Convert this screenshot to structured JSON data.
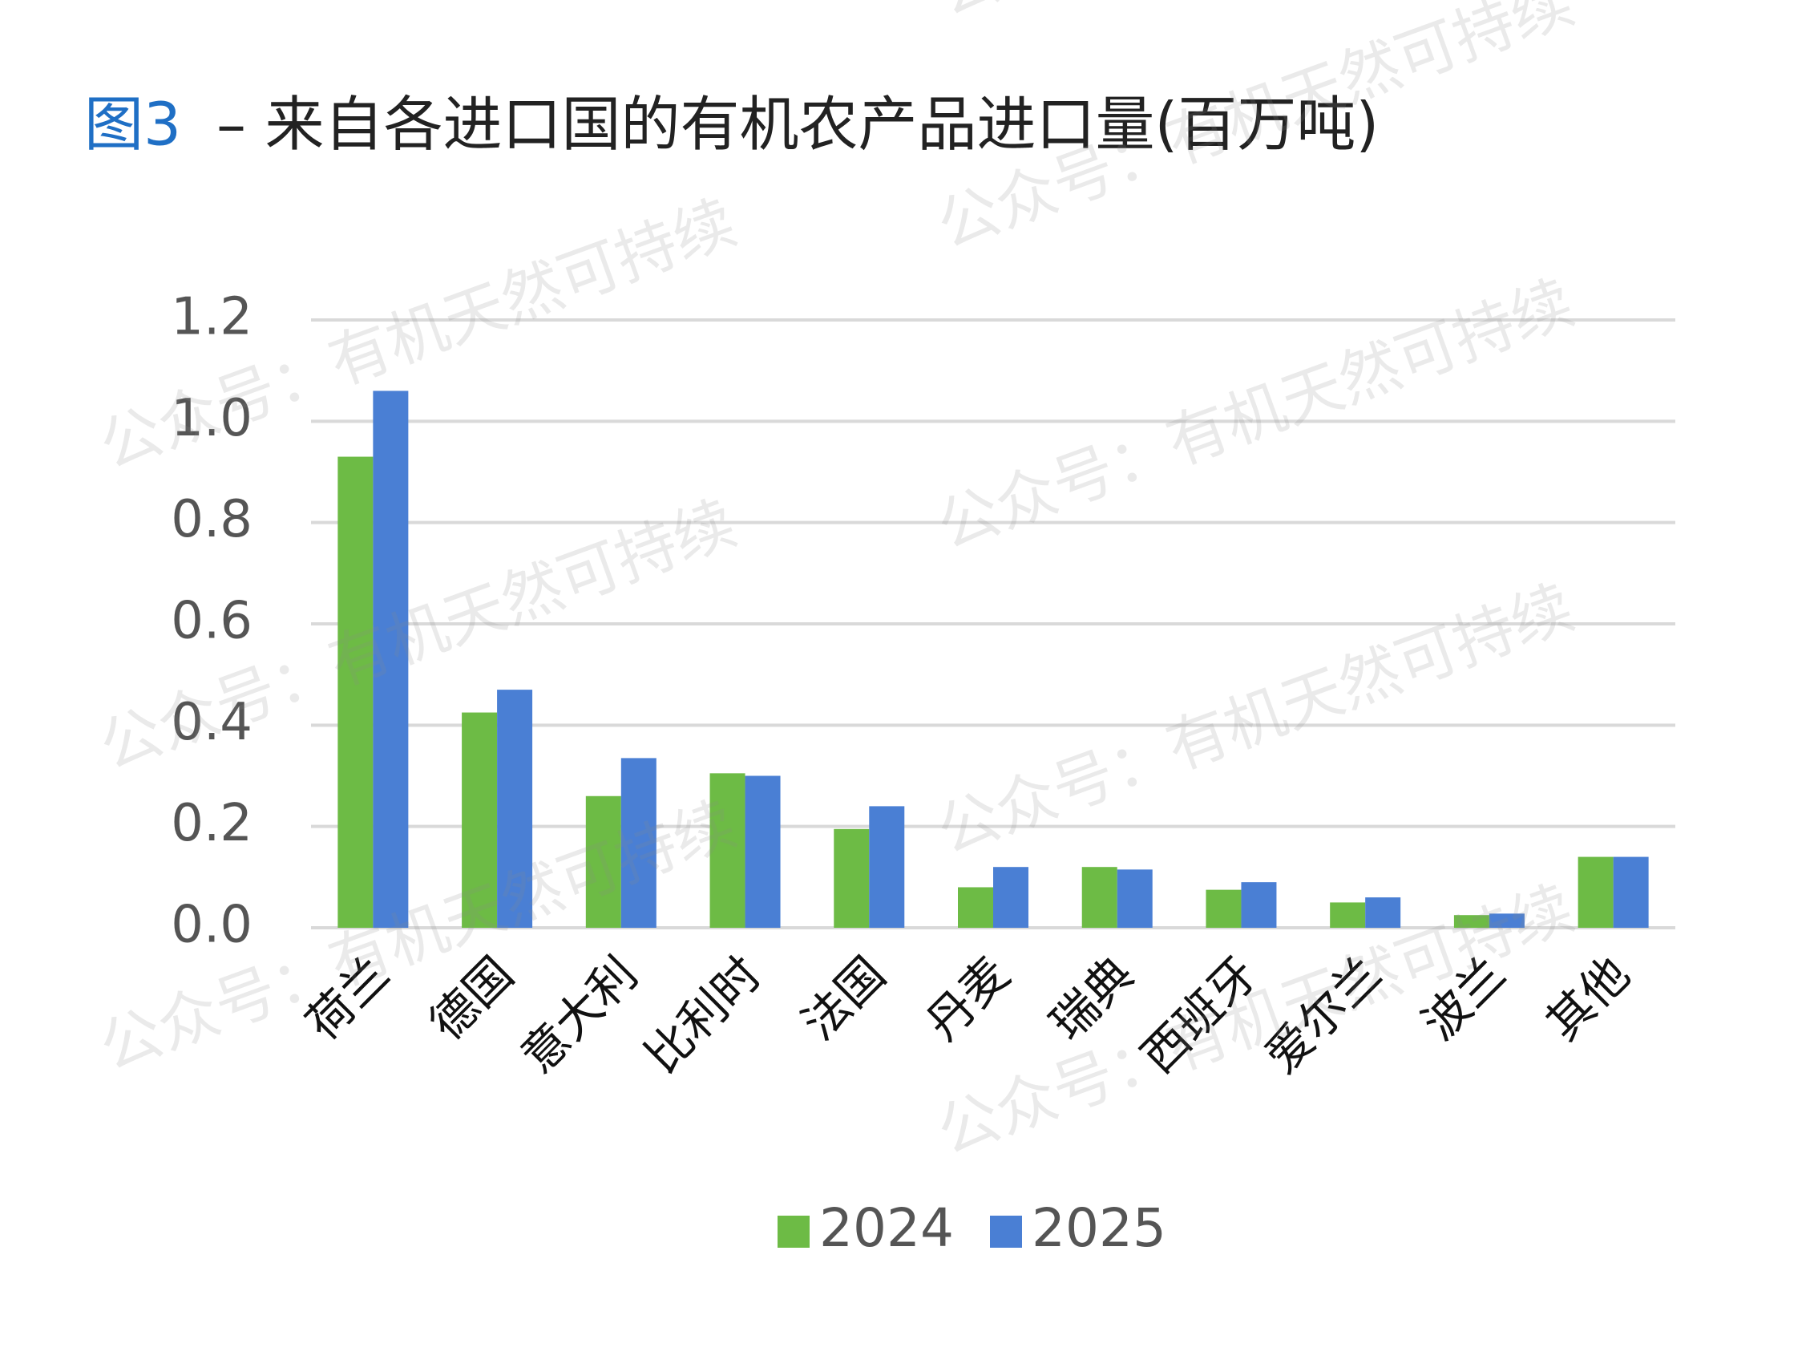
{
  "chart_data": {
    "type": "bar",
    "title_label": "图3",
    "title": "– 来自各进口国的有机农产品进口量(百万吨)",
    "watermark": "公众号：有机天然可持续",
    "categories": [
      "荷兰",
      "德国",
      "意大利",
      "比利时",
      "法国",
      "丹麦",
      "瑞典",
      "西班牙",
      "爱尔兰",
      "波兰",
      "其他"
    ],
    "series": [
      {
        "name": "2024",
        "color": "#6dbb45",
        "values": [
          0.93,
          0.425,
          0.26,
          0.305,
          0.195,
          0.08,
          0.12,
          0.075,
          0.05,
          0.025,
          0.14
        ]
      },
      {
        "name": "2025",
        "color": "#4a7fd4",
        "values": [
          1.06,
          0.47,
          0.335,
          0.3,
          0.24,
          0.12,
          0.115,
          0.09,
          0.06,
          0.028,
          0.14
        ]
      }
    ],
    "ylim": [
      0,
      1.2
    ],
    "yticks": [
      {
        "value": 0,
        "label": "0.0"
      },
      0.2,
      0.4,
      0.6,
      0.8,
      {
        "value": 1,
        "label": "1.0"
      },
      1.2
    ],
    "grid": true,
    "legend": "bottom"
  }
}
